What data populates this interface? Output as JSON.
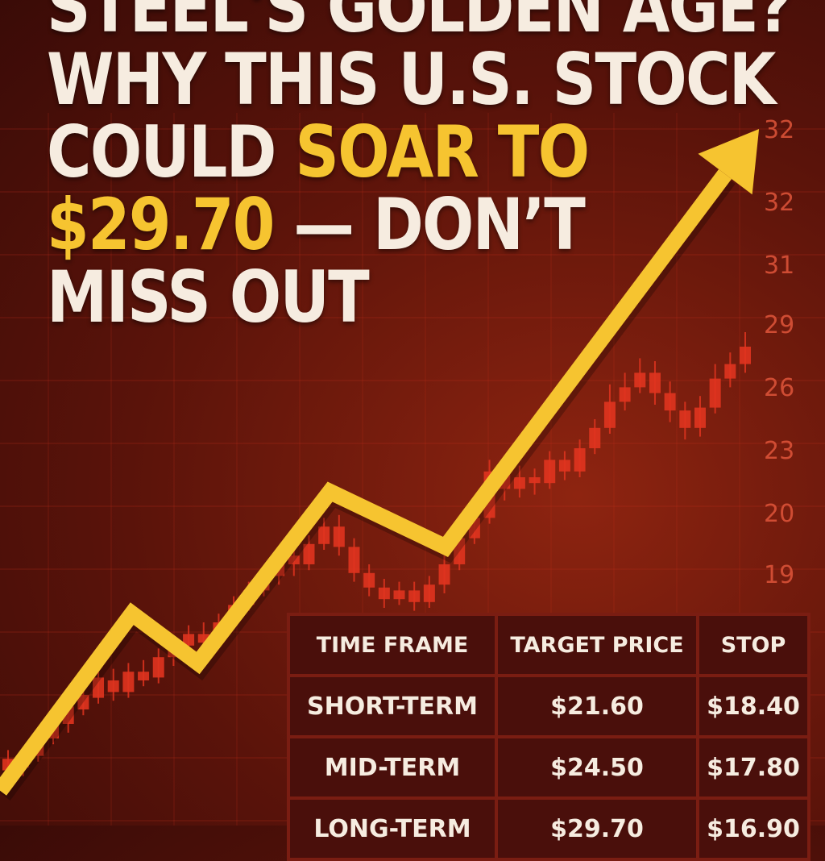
{
  "headline": {
    "line1": "STEEL'S GOLDEN AGE?",
    "line2": "WHY THIS U.S. STOCK",
    "line3_pre": "COULD ",
    "line3_hl": "SOAR TO",
    "line4_hl": "$29.70",
    "line4_post": " — DON’T",
    "line5": "MISS OUT"
  },
  "colors": {
    "accent": "#f6c430",
    "candle": "#e0341f",
    "text": "#f6ece0",
    "background": "#5a130a"
  },
  "chart_data": {
    "type": "line",
    "y_tick_labels": [
      "32",
      "32",
      "31",
      "29",
      "26",
      "23",
      "20",
      "19"
    ],
    "candles": [
      {
        "o": 14.3,
        "c": 13.9,
        "h": 14.6,
        "l": 13.6
      },
      {
        "o": 14.0,
        "c": 14.4,
        "h": 14.7,
        "l": 13.7
      },
      {
        "o": 14.4,
        "c": 15.1,
        "h": 15.4,
        "l": 14.2
      },
      {
        "o": 15.0,
        "c": 15.6,
        "h": 15.9,
        "l": 14.8
      },
      {
        "o": 15.5,
        "c": 16.1,
        "h": 16.4,
        "l": 15.2
      },
      {
        "o": 16.0,
        "c": 16.5,
        "h": 16.8,
        "l": 15.8
      },
      {
        "o": 16.4,
        "c": 17.1,
        "h": 17.5,
        "l": 16.2
      },
      {
        "o": 17.0,
        "c": 16.6,
        "h": 17.4,
        "l": 16.3
      },
      {
        "o": 16.6,
        "c": 17.3,
        "h": 17.6,
        "l": 16.4
      },
      {
        "o": 17.3,
        "c": 17.0,
        "h": 17.7,
        "l": 16.8
      },
      {
        "o": 17.1,
        "c": 17.8,
        "h": 18.1,
        "l": 16.9
      },
      {
        "o": 17.8,
        "c": 18.2,
        "h": 18.5,
        "l": 17.5
      },
      {
        "o": 18.2,
        "c": 18.6,
        "h": 18.9,
        "l": 17.9
      },
      {
        "o": 18.6,
        "c": 18.3,
        "h": 19.0,
        "l": 18.0
      },
      {
        "o": 18.3,
        "c": 19.0,
        "h": 19.3,
        "l": 18.1
      },
      {
        "o": 19.0,
        "c": 19.6,
        "h": 19.9,
        "l": 18.8
      },
      {
        "o": 19.6,
        "c": 20.1,
        "h": 20.4,
        "l": 19.4
      },
      {
        "o": 20.1,
        "c": 20.6,
        "h": 20.9,
        "l": 19.9
      },
      {
        "o": 20.6,
        "c": 21.3,
        "h": 21.6,
        "l": 20.3
      },
      {
        "o": 21.3,
        "c": 21.0,
        "h": 21.8,
        "l": 20.6
      },
      {
        "o": 21.0,
        "c": 21.7,
        "h": 22.0,
        "l": 20.8
      },
      {
        "o": 21.7,
        "c": 22.3,
        "h": 22.6,
        "l": 21.5
      },
      {
        "o": 22.3,
        "c": 21.6,
        "h": 22.7,
        "l": 21.3
      },
      {
        "o": 21.6,
        "c": 20.7,
        "h": 21.9,
        "l": 20.4
      },
      {
        "o": 20.7,
        "c": 20.2,
        "h": 21.0,
        "l": 19.9
      },
      {
        "o": 20.2,
        "c": 19.8,
        "h": 20.5,
        "l": 19.5
      },
      {
        "o": 19.8,
        "c": 20.1,
        "h": 20.4,
        "l": 19.6
      },
      {
        "o": 20.1,
        "c": 19.7,
        "h": 20.4,
        "l": 19.4
      },
      {
        "o": 19.7,
        "c": 20.3,
        "h": 20.6,
        "l": 19.5
      },
      {
        "o": 20.3,
        "c": 21.0,
        "h": 21.3,
        "l": 20.0
      },
      {
        "o": 21.0,
        "c": 21.9,
        "h": 22.2,
        "l": 20.8
      },
      {
        "o": 21.9,
        "c": 22.6,
        "h": 22.9,
        "l": 21.7
      },
      {
        "o": 22.6,
        "c": 24.2,
        "h": 24.6,
        "l": 22.4
      },
      {
        "o": 24.2,
        "c": 23.6,
        "h": 24.6,
        "l": 23.2
      },
      {
        "o": 23.6,
        "c": 24.0,
        "h": 24.4,
        "l": 23.3
      },
      {
        "o": 24.0,
        "c": 23.8,
        "h": 24.3,
        "l": 23.4
      },
      {
        "o": 23.8,
        "c": 24.6,
        "h": 24.9,
        "l": 23.6
      },
      {
        "o": 24.6,
        "c": 24.2,
        "h": 24.9,
        "l": 23.9
      },
      {
        "o": 24.2,
        "c": 25.0,
        "h": 25.3,
        "l": 24.0
      },
      {
        "o": 25.0,
        "c": 25.7,
        "h": 26.0,
        "l": 24.8
      },
      {
        "o": 25.7,
        "c": 26.6,
        "h": 27.2,
        "l": 25.5
      },
      {
        "o": 26.6,
        "c": 27.1,
        "h": 27.6,
        "l": 26.3
      },
      {
        "o": 27.1,
        "c": 27.6,
        "h": 28.1,
        "l": 26.9
      },
      {
        "o": 27.6,
        "c": 26.9,
        "h": 28.0,
        "l": 26.5
      },
      {
        "o": 26.9,
        "c": 26.3,
        "h": 27.3,
        "l": 25.9
      },
      {
        "o": 26.3,
        "c": 25.7,
        "h": 26.6,
        "l": 25.3
      },
      {
        "o": 25.7,
        "c": 26.4,
        "h": 26.8,
        "l": 25.4
      },
      {
        "o": 26.4,
        "c": 27.4,
        "h": 27.9,
        "l": 26.2
      },
      {
        "o": 27.4,
        "c": 27.9,
        "h": 28.3,
        "l": 27.1
      },
      {
        "o": 27.9,
        "c": 28.5,
        "h": 29.0,
        "l": 27.6
      }
    ],
    "trend_arrow": [
      {
        "x": 0,
        "y": 13.2
      },
      {
        "x": 0.16,
        "y": 19.3
      },
      {
        "x": 0.24,
        "y": 17.6
      },
      {
        "x": 0.4,
        "y": 23.5
      },
      {
        "x": 0.54,
        "y": 21.6
      },
      {
        "x": 0.92,
        "y": 36.0
      }
    ]
  },
  "table": {
    "headers": [
      "TIME FRAME",
      "TARGET PRICE",
      "STOP"
    ],
    "rows": [
      [
        "SHORT-TERM",
        "$21.60",
        "$18.40"
      ],
      [
        "MID-TERM",
        "$24.50",
        "$17.80"
      ],
      [
        "LONG-TERM",
        "$29.70",
        "$16.90"
      ]
    ]
  }
}
